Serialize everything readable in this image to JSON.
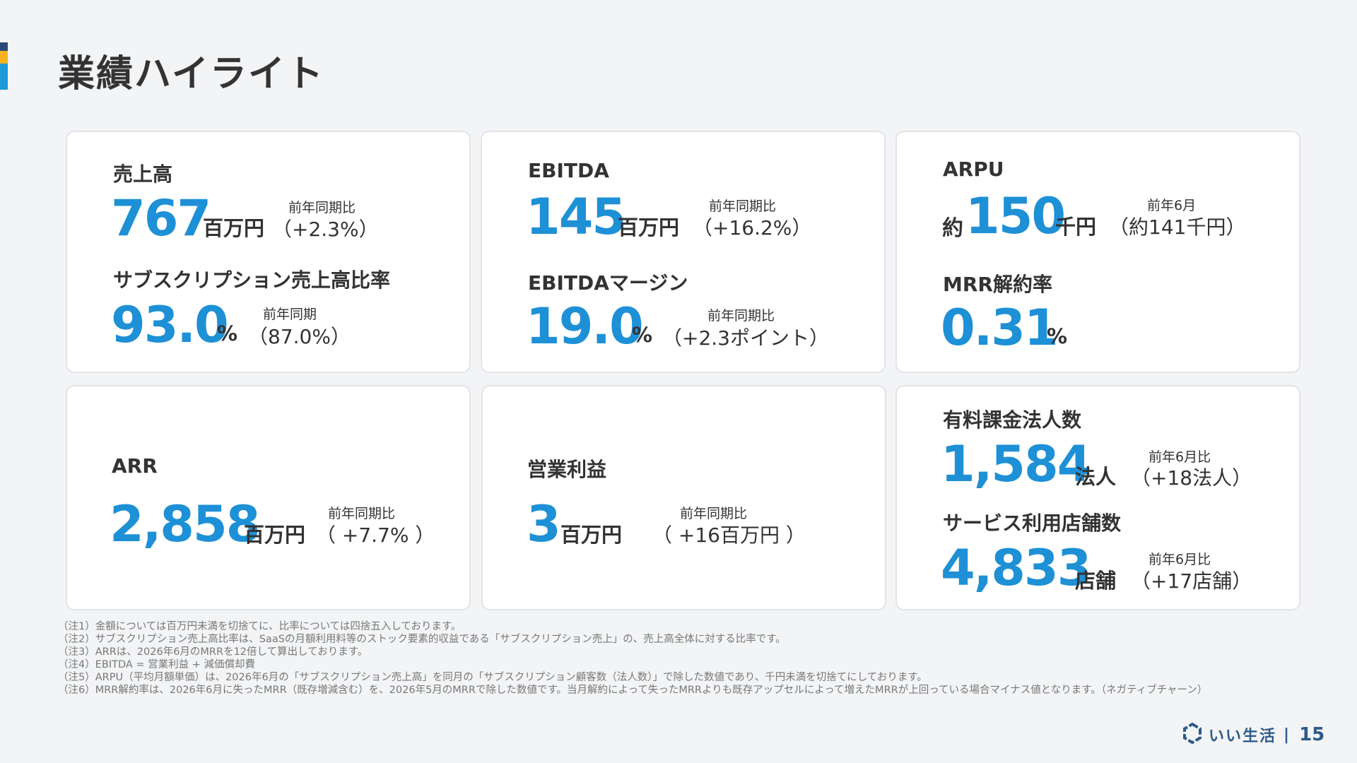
{
  "title": "業績ハイライト",
  "cards": {
    "revenue": {
      "label": "売上高",
      "value": "767",
      "unit": "百万円",
      "cmp_head": "前年同期比",
      "cmp_val": "（+2.3%）"
    },
    "subscription_ratio": {
      "label": "サブスクリプション売上高比率",
      "value": "93.0",
      "unit": "%",
      "cmp_head": "前年同期",
      "cmp_val": "（87.0%）"
    },
    "ebitda": {
      "label": "EBITDA",
      "value": "145",
      "unit": "百万円",
      "cmp_head": "前年同期比",
      "cmp_val": "（+16.2%）"
    },
    "ebitda_margin": {
      "label": "EBITDAマージン",
      "value": "19.0",
      "unit": "%",
      "cmp_head": "前年同期比",
      "cmp_val": "（+2.3ポイント）"
    },
    "arpu": {
      "label": "ARPU",
      "prefix": "約",
      "value": "150",
      "unit": "千円",
      "cmp_head": "前年6月",
      "cmp_val": "（約141千円）"
    },
    "mrr_churn": {
      "label": "MRR解約率",
      "value": "0.31",
      "unit": "%"
    },
    "arr": {
      "label": "ARR",
      "value": "2,858",
      "unit": "百万円",
      "cmp_head": "前年同期比",
      "cmp_val": "（ +7.7% ）"
    },
    "operating_profit": {
      "label": "営業利益",
      "value": "3",
      "unit": "百万円",
      "cmp_head": "前年同期比",
      "cmp_val": "（ +16百万円 ）"
    },
    "paid_corporations": {
      "label": "有料課金法人数",
      "value": "1,584",
      "unit": "法人",
      "cmp_head": "前年6月比",
      "cmp_val": "（+18法人）"
    },
    "stores": {
      "label": "サービス利用店舗数",
      "value": "4,833",
      "unit": "店舗",
      "cmp_head": "前年6月比",
      "cmp_val": "（+17店舗）"
    }
  },
  "notes": [
    "（注1）金額については百万円未満を切捨てに、比率については四捨五入しております。",
    "（注2）サブスクリプション売上高比率は、SaaSの月額利用料等のストック要素的収益である「サブスクリプション売上」の、売上高全体に対する比率です。",
    "（注3）ARRは、2026年6月のMRRを12倍して算出しております。",
    "（注4）EBITDA = 営業利益 + 減価償却費",
    "（注5）ARPU（平均月額単価）は、2026年6月の「サブスクリプション売上高」を同月の「サブスクリプション顧客数（法人数）」で除した数値であり、千円未満を切捨てにしております。",
    "（注6）MRR解約率は、2026年6月に失ったMRR（既存増減含む）を、2026年5月のMRRで除した数値です。当月解約によって失ったMRRよりも既存アップセルによって増えたMRRが上回っている場合マイナス値となります。（ネガティブチャーン）"
  ],
  "footer": {
    "logo_text": "いい生活",
    "separator": "|",
    "page_number": "15"
  },
  "colors": {
    "accent_blue": "#1e90d6",
    "accent_yellow": "#f5b21f",
    "accent_navy": "#2a4a7a",
    "logo_blue": "#2d5b8a"
  }
}
